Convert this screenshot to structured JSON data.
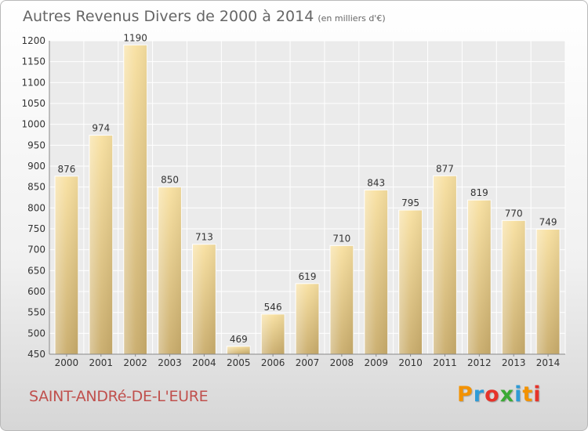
{
  "chart_data": {
    "type": "bar",
    "title": "Autres Revenus Divers de 2000 à 2014",
    "subtitle": "(en milliers d'€)",
    "categories": [
      "2000",
      "2001",
      "2002",
      "2003",
      "2004",
      "2005",
      "2006",
      "2007",
      "2008",
      "2009",
      "2010",
      "2011",
      "2012",
      "2013",
      "2014"
    ],
    "values": [
      876,
      974,
      1190,
      850,
      713,
      469,
      546,
      619,
      710,
      843,
      795,
      877,
      819,
      770,
      749
    ],
    "ylim": [
      450,
      1200
    ],
    "yticks": [
      450,
      500,
      550,
      600,
      650,
      700,
      750,
      800,
      850,
      900,
      950,
      1000,
      1050,
      1100,
      1150,
      1200
    ],
    "grid": true,
    "bar_color": "#f2d48a"
  },
  "footer": {
    "commune": "SAINT-ANDRé-DE-L'EURE",
    "logo": [
      "P",
      "r",
      "o",
      "x",
      "i",
      "t",
      "i"
    ],
    "logo_colors": [
      "#f39200",
      "#2e9bd6",
      "#e6332a",
      "#3aaa35",
      "#2e9bd6",
      "#f39200",
      "#e6332a"
    ]
  }
}
